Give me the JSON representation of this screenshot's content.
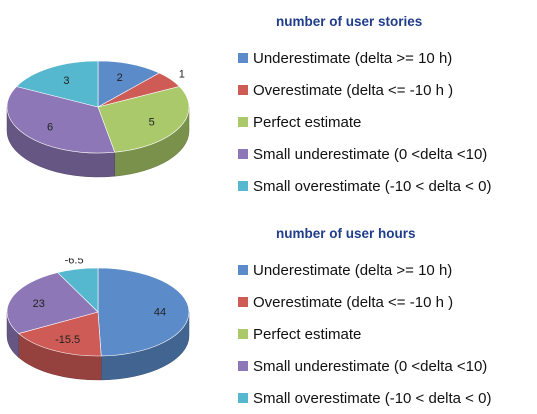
{
  "chart_data": [
    {
      "type": "pie",
      "title": "number of user stories",
      "categories": [
        "Underestimate (delta >= 10 h)",
        "Overestimate (delta <= -10 h )",
        "Perfect estimate",
        "Small underestimate (0 <delta <10)",
        "Small overestimate  (-10 < delta < 0)"
      ],
      "values": [
        2,
        1,
        5,
        6,
        3
      ],
      "data_labels": [
        "2",
        "1",
        "5",
        "6",
        "3"
      ],
      "colors": [
        "#5b8bc9",
        "#cf5b57",
        "#a9c96a",
        "#8e77b6",
        "#55b8ce"
      ],
      "style": "3d",
      "legend_position": "right"
    },
    {
      "type": "pie",
      "title": "number of user hours",
      "categories": [
        "Underestimate (delta >= 10 h)",
        "Overestimate (delta <= -10 h )",
        "Perfect estimate",
        "Small underestimate (0 <delta <10)",
        "Small overestimate  (-10 < delta < 0)"
      ],
      "values": [
        44,
        -15.5,
        0,
        23,
        -6.5
      ],
      "data_labels": [
        "44",
        "-15.5",
        "",
        "23",
        "-6.5"
      ],
      "colors": [
        "#5b8bc9",
        "#cf5b57",
        "#a9c96a",
        "#8e77b6",
        "#55b8ce"
      ],
      "style": "3d",
      "legend_position": "right"
    }
  ]
}
